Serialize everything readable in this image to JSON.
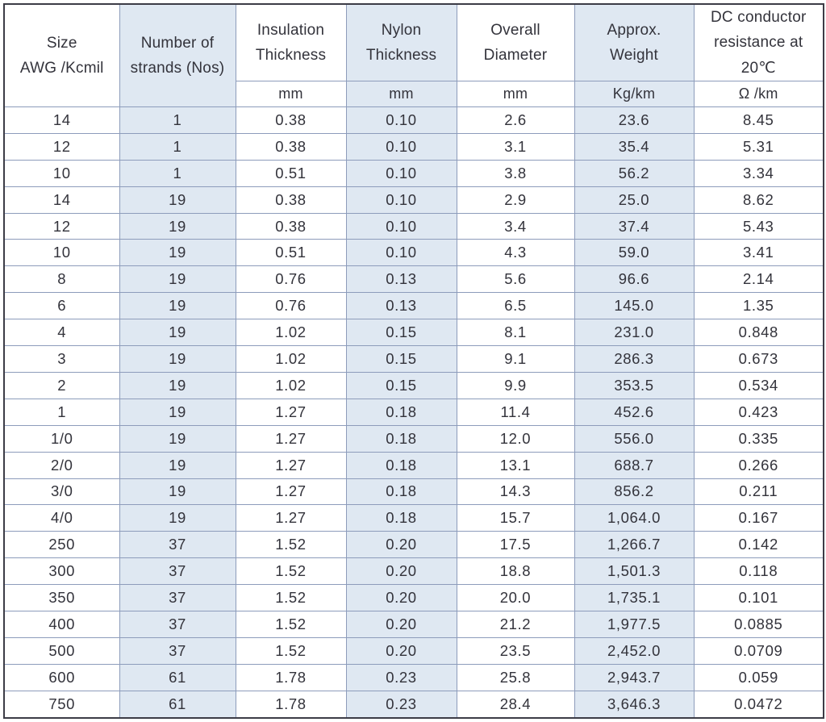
{
  "table": {
    "colors": {
      "shaded_column_bg": "#dfe8f2",
      "grid_border": "#8d9cbb",
      "outer_border": "#3c3c46",
      "text": "#33333b"
    },
    "headers": [
      {
        "key": "size",
        "label": "Size\nAWG /Kcmil",
        "unit": ""
      },
      {
        "key": "strands",
        "label": "Number of\nstrands (Nos)",
        "unit": ""
      },
      {
        "key": "insulation-thickness",
        "label": "Insulation\nThickness",
        "unit": "mm"
      },
      {
        "key": "nylon-thickness",
        "label": "Nylon\nThickness",
        "unit": "mm"
      },
      {
        "key": "overall-diameter",
        "label": "Overall\nDiameter",
        "unit": "mm"
      },
      {
        "key": "approx-weight",
        "label": "Approx.\nWeight",
        "unit": "Kg/km"
      },
      {
        "key": "dc-resistance",
        "label": "DC conductor\nresistance at\n20℃",
        "unit": "Ω /km"
      }
    ],
    "rows": [
      [
        "14",
        "1",
        "0.38",
        "0.10",
        "2.6",
        "23.6",
        "8.45"
      ],
      [
        "12",
        "1",
        "0.38",
        "0.10",
        "3.1",
        "35.4",
        "5.31"
      ],
      [
        "10",
        "1",
        "0.51",
        "0.10",
        "3.8",
        "56.2",
        "3.34"
      ],
      [
        "14",
        "19",
        "0.38",
        "0.10",
        "2.9",
        "25.0",
        "8.62"
      ],
      [
        "12",
        "19",
        "0.38",
        "0.10",
        "3.4",
        "37.4",
        "5.43"
      ],
      [
        "10",
        "19",
        "0.51",
        "0.10",
        "4.3",
        "59.0",
        "3.41"
      ],
      [
        "8",
        "19",
        "0.76",
        "0.13",
        "5.6",
        "96.6",
        "2.14"
      ],
      [
        "6",
        "19",
        "0.76",
        "0.13",
        "6.5",
        "145.0",
        "1.35"
      ],
      [
        "4",
        "19",
        "1.02",
        "0.15",
        "8.1",
        "231.0",
        "0.848"
      ],
      [
        "3",
        "19",
        "1.02",
        "0.15",
        "9.1",
        "286.3",
        "0.673"
      ],
      [
        "2",
        "19",
        "1.02",
        "0.15",
        "9.9",
        "353.5",
        "0.534"
      ],
      [
        "1",
        "19",
        "1.27",
        "0.18",
        "11.4",
        "452.6",
        "0.423"
      ],
      [
        "1/0",
        "19",
        "1.27",
        "0.18",
        "12.0",
        "556.0",
        "0.335"
      ],
      [
        "2/0",
        "19",
        "1.27",
        "0.18",
        "13.1",
        "688.7",
        "0.266"
      ],
      [
        "3/0",
        "19",
        "1.27",
        "0.18",
        "14.3",
        "856.2",
        "0.211"
      ],
      [
        "4/0",
        "19",
        "1.27",
        "0.18",
        "15.7",
        "1,064.0",
        "0.167"
      ],
      [
        "250",
        "37",
        "1.52",
        "0.20",
        "17.5",
        "1,266.7",
        "0.142"
      ],
      [
        "300",
        "37",
        "1.52",
        "0.20",
        "18.8",
        "1,501.3",
        "0.118"
      ],
      [
        "350",
        "37",
        "1.52",
        "0.20",
        "20.0",
        "1,735.1",
        "0.101"
      ],
      [
        "400",
        "37",
        "1.52",
        "0.20",
        "21.2",
        "1,977.5",
        "0.0885"
      ],
      [
        "500",
        "37",
        "1.52",
        "0.20",
        "23.5",
        "2,452.0",
        "0.0709"
      ],
      [
        "600",
        "61",
        "1.78",
        "0.23",
        "25.8",
        "2,943.7",
        "0.059"
      ],
      [
        "750",
        "61",
        "1.78",
        "0.23",
        "28.4",
        "3,646.3",
        "0.0472"
      ]
    ]
  }
}
